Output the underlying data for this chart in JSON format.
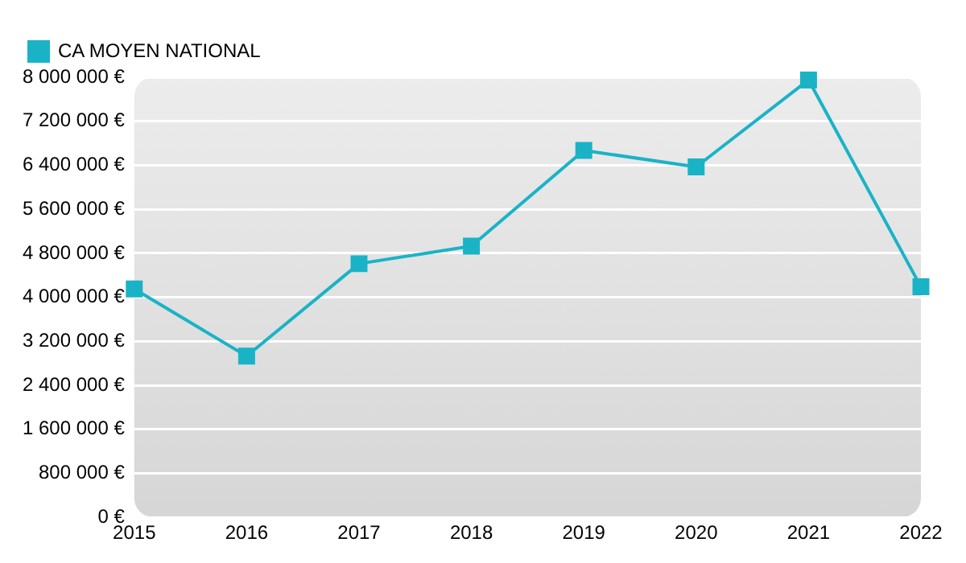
{
  "chart_data": {
    "type": "line",
    "categories": [
      "2015",
      "2016",
      "2017",
      "2018",
      "2019",
      "2020",
      "2021",
      "2022"
    ],
    "series": [
      {
        "name": "CA MOYEN NATIONAL",
        "color": "#1ab3c6",
        "values": [
          4150000,
          2930000,
          4610000,
          4930000,
          6670000,
          6370000,
          7950000,
          4190000
        ]
      }
    ],
    "ylim": [
      0,
      8000000
    ],
    "yticks": [
      {
        "value": 0,
        "label": "0 €"
      },
      {
        "value": 800000,
        "label": "800 000 €"
      },
      {
        "value": 1600000,
        "label": "1 600 000 €"
      },
      {
        "value": 2400000,
        "label": "2 400 000 €"
      },
      {
        "value": 3200000,
        "label": "3 200 000 €"
      },
      {
        "value": 4000000,
        "label": "4 000 000 €"
      },
      {
        "value": 4800000,
        "label": "4 800 000 €"
      },
      {
        "value": 5600000,
        "label": "5 600 000 €"
      },
      {
        "value": 6400000,
        "label": "6 400 000 €"
      },
      {
        "value": 7200000,
        "label": "7 200 000 €"
      },
      {
        "value": 8000000,
        "label": "8 000 000 €"
      }
    ],
    "grid": "y",
    "legend": "top left",
    "marker": "square",
    "line_style": "solid"
  }
}
